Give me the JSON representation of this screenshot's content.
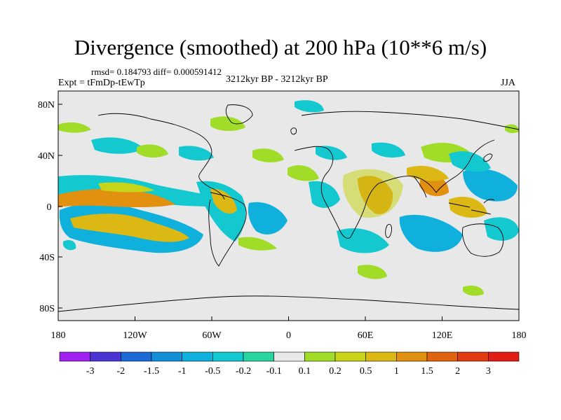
{
  "title": "Divergence (smoothed) at 200 hPa (10**6 m/s)",
  "stats": "rmsd= 0.184793 diff= 0.000591412",
  "experiment": "Expt = tFmDp-tEwTp",
  "period": "3212kyr BP - 3212kyr BP",
  "season": "JJA",
  "colors": {
    "background": "#e8e8e8",
    "coast": "#000000",
    "green": "#a0dc28",
    "yellow": "#d6b818",
    "orange": "#e2a010",
    "deep_orange": "#e05c10",
    "teal": "#10c8c8",
    "cyan": "#10b0dc",
    "blue": "#1478c8"
  },
  "map": {
    "x_axis": {
      "min": -180,
      "max": 180,
      "labels": [
        "180",
        "120W",
        "60W",
        "0",
        "60E",
        "120E",
        "180"
      ]
    },
    "y_axis": {
      "min": -90,
      "max": 90,
      "labels": [
        "80N",
        "40N",
        "0",
        "40S",
        "80S"
      ]
    }
  },
  "colorbar": {
    "labels": [
      "-3",
      "-2",
      "-1.5",
      "-1",
      "-0.5",
      "-0.2",
      "-0.1",
      "0.1",
      "0.2",
      "0.5",
      "1",
      "1.5",
      "2",
      "3"
    ],
    "colors": [
      "#a020f0",
      "#4a34d4",
      "#1c6ad6",
      "#1490d8",
      "#10b0dc",
      "#14c8d0",
      "#28d4a0",
      "#e8e8e8",
      "#a0dc28",
      "#c8d418",
      "#dcb814",
      "#e29010",
      "#e06410",
      "#e03c10",
      "#e01e14"
    ]
  }
}
